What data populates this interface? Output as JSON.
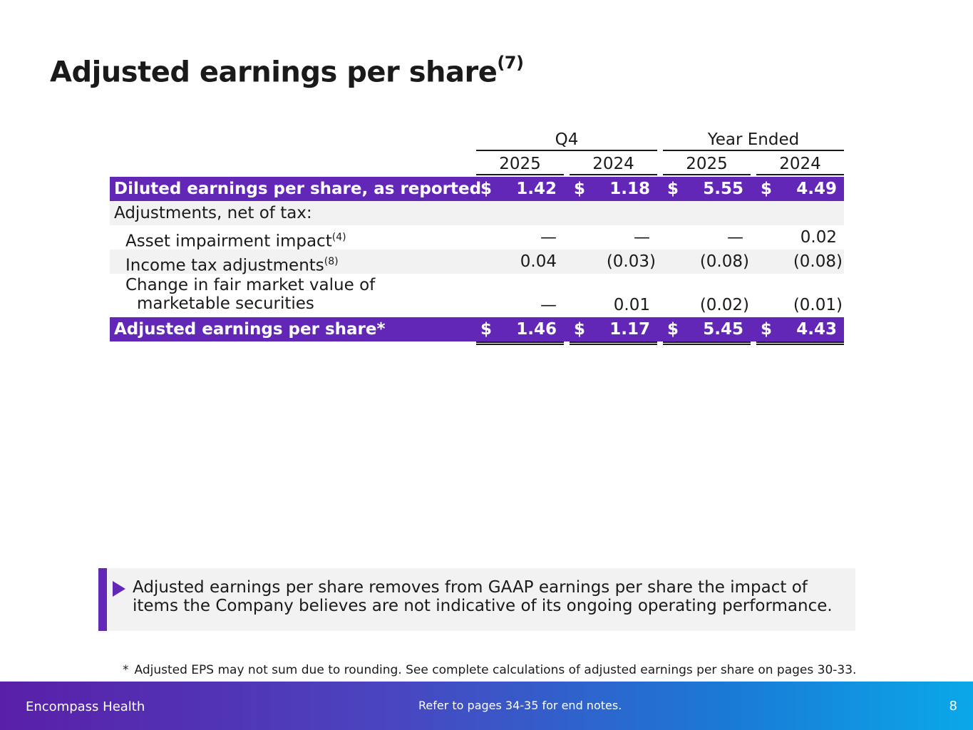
{
  "title": "Adjusted earnings per share",
  "title_sup": "(7)",
  "headers": {
    "q4": "Q4",
    "year_ended": "Year Ended",
    "years": [
      "2025",
      "2024",
      "2025",
      "2024"
    ]
  },
  "rows": {
    "diluted": {
      "label": "Diluted earnings per share, as reported",
      "cur": "$",
      "values": [
        "1.42",
        "1.18",
        "5.55",
        "4.49"
      ]
    },
    "adjustments": {
      "label": "Adjustments, net of tax:"
    },
    "impairment": {
      "label": "Asset impairment impact",
      "sup": "(4)",
      "values": [
        "—",
        "—",
        "—",
        "0.02"
      ]
    },
    "income_tax": {
      "label": "Income tax adjustments",
      "sup": "(8)",
      "values": [
        "0.04",
        "(0.03)",
        "(0.08)",
        "(0.08)"
      ]
    },
    "fair_value": {
      "label_line1": "Change in fair market value of",
      "label_line2": "marketable securities",
      "values": [
        "—",
        "0.01",
        "(0.02)",
        "(0.01)"
      ]
    },
    "adjusted": {
      "label": "Adjusted earnings per share*",
      "cur": "$",
      "values": [
        "1.46",
        "1.17",
        "5.45",
        "4.43"
      ]
    }
  },
  "callout": "Adjusted earnings per share removes from GAAP earnings per share the impact of items the Company believes are not indicative of its ongoing operating performance.",
  "footnote": {
    "star": "*",
    "text": "Adjusted EPS may not sum due to rounding. See complete calculations of adjusted earnings per share on pages 30-33."
  },
  "footer": {
    "brand": "Encompass Health",
    "note": "Refer to pages 34-35 for end notes.",
    "page": "8"
  },
  "colors": {
    "accent": "#6327b8",
    "row_grey": "#f2f2f2"
  }
}
